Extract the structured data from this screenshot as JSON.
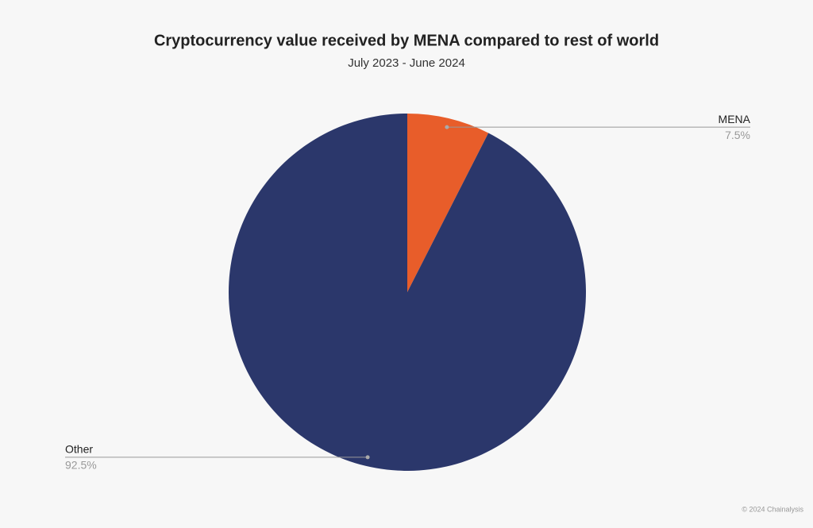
{
  "chart_data": {
    "type": "pie",
    "title": "Cryptocurrency value received by MENA compared to rest of world",
    "subtitle": "July 2023 - June 2024",
    "categories": [
      "MENA",
      "Other"
    ],
    "values": [
      7.5,
      92.5
    ],
    "value_labels": [
      "7.5%",
      "92.5%"
    ],
    "colors": [
      "#e85d2a",
      "#2b376b"
    ],
    "footer": "© 2024 Chainalysis"
  }
}
